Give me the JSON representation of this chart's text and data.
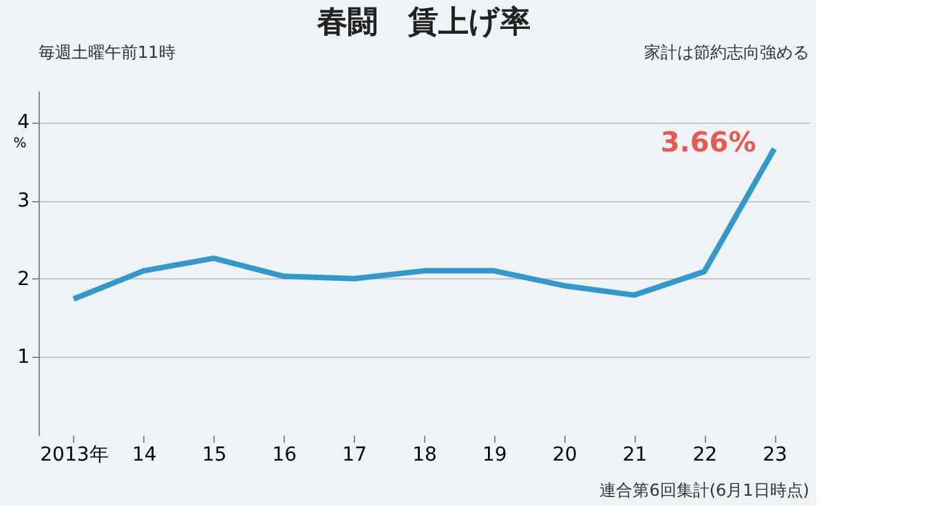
{
  "chart_data": {
    "type": "line",
    "title": "春闘　賃上げ率",
    "ylabel": "%",
    "categories": [
      "2013年",
      "14",
      "15",
      "16",
      "17",
      "18",
      "19",
      "20",
      "21",
      "22",
      "23"
    ],
    "series": [
      {
        "color": "#3399cc",
        "values": [
          1.74,
          2.1,
          2.26,
          2.03,
          2.0,
          2.1,
          2.1,
          1.91,
          1.79,
          2.09,
          3.66
        ],
        "value_labels": [
          null,
          null,
          null,
          null,
          null,
          null,
          null,
          null,
          null,
          null,
          "3.66%"
        ]
      }
    ],
    "ylim": [
      0,
      4.4
    ],
    "yticks": [
      1,
      2,
      3,
      4
    ],
    "grid": "y",
    "marker": "none",
    "line_style": "solid",
    "annotations": [
      "毎週土曜午前11時",
      "家計は節約志向強める",
      "連合第6回集計(6月1日時点)"
    ]
  }
}
